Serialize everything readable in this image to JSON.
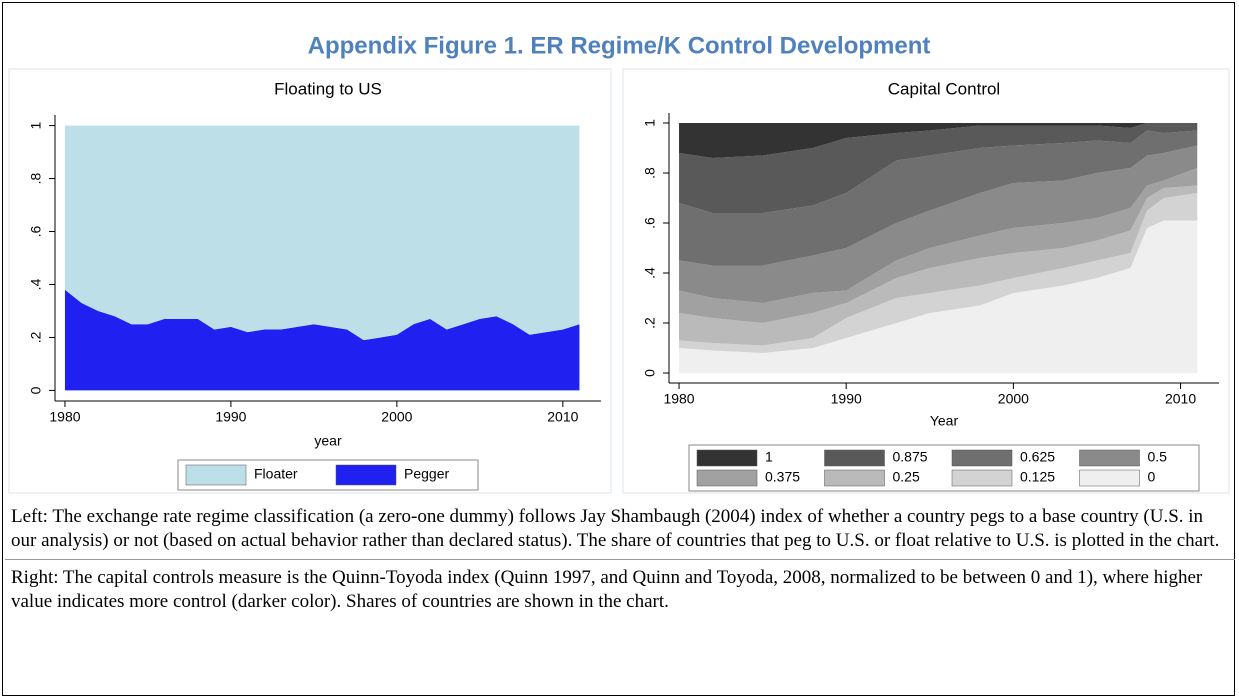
{
  "figure_title": "Appendix Figure 1. ER Regime/K Control Development",
  "notes": [
    "Left: The exchange rate regime classification (a zero-one dummy) follows Jay Shambaugh (2004) index of whether a country pegs to a base country (U.S. in our analysis) or not (based on actual behavior rather than declared status). The share of countries that peg to U.S. or float relative to U.S. is plotted in the chart.",
    "Right: The capital controls measure is the Quinn-Toyoda index (Quinn 1997, and Quinn and Toyoda, 2008, normalized to be between 0 and 1), where higher value indicates more control (darker color). Shares of countries are shown in the chart."
  ],
  "chart_data": [
    {
      "type": "stacked_area",
      "title": "Floating to US",
      "x_label": "year",
      "x": [
        1980,
        1981,
        1982,
        1983,
        1984,
        1985,
        1986,
        1987,
        1988,
        1989,
        1990,
        1991,
        1992,
        1993,
        1994,
        1995,
        1996,
        1997,
        1998,
        1999,
        2000,
        2001,
        2002,
        2003,
        2004,
        2005,
        2006,
        2007,
        2008,
        2009,
        2010,
        2011
      ],
      "series": [
        {
          "name": "Floater",
          "color": "#bde0e8",
          "values": [
            0.62,
            0.67,
            0.7,
            0.72,
            0.75,
            0.75,
            0.73,
            0.73,
            0.73,
            0.77,
            0.76,
            0.78,
            0.77,
            0.77,
            0.76,
            0.75,
            0.76,
            0.77,
            0.81,
            0.8,
            0.79,
            0.75,
            0.73,
            0.77,
            0.75,
            0.73,
            0.72,
            0.75,
            0.79,
            0.78,
            0.77,
            0.75
          ]
        },
        {
          "name": "Pegger",
          "color": "#2020f0",
          "values": [
            0.38,
            0.33,
            0.3,
            0.28,
            0.25,
            0.25,
            0.27,
            0.27,
            0.27,
            0.23,
            0.24,
            0.22,
            0.23,
            0.23,
            0.24,
            0.25,
            0.24,
            0.23,
            0.19,
            0.2,
            0.21,
            0.25,
            0.27,
            0.23,
            0.25,
            0.27,
            0.28,
            0.25,
            0.21,
            0.22,
            0.23,
            0.25
          ]
        }
      ],
      "xlim": [
        1979.4,
        2012.3
      ],
      "ylim": [
        -0.04,
        1.04
      ],
      "xticks": [
        1980,
        1990,
        2000,
        2010
      ],
      "yticks": [
        0,
        {
          "value": 0.2,
          "label": ".2"
        },
        {
          "value": 0.4,
          "label": ".4"
        },
        {
          "value": 0.6,
          "label": ".6"
        },
        {
          "value": 0.8,
          "label": ".8"
        },
        1
      ],
      "legend_columns": 2
    },
    {
      "type": "stacked_area",
      "title": "Capital Control",
      "x_label": "Year",
      "x": [
        1980,
        1982,
        1985,
        1988,
        1990,
        1993,
        1995,
        1998,
        2000,
        2003,
        2005,
        2007,
        2008,
        2009,
        2011
      ],
      "series": [
        {
          "name": "1",
          "color": "#333333",
          "values": [
            0.12,
            0.14,
            0.13,
            0.1,
            0.06,
            0.04,
            0.03,
            0.01,
            0.01,
            0.01,
            0.01,
            0.02,
            0,
            0,
            0
          ]
        },
        {
          "name": "0.875",
          "color": "#595959",
          "values": [
            0.2,
            0.22,
            0.23,
            0.23,
            0.22,
            0.11,
            0.1,
            0.09,
            0.08,
            0.07,
            0.06,
            0.06,
            0.03,
            0.04,
            0.03
          ]
        },
        {
          "name": "0.625",
          "color": "#6f6f6f",
          "values": [
            0.23,
            0.21,
            0.21,
            0.2,
            0.22,
            0.25,
            0.22,
            0.18,
            0.15,
            0.15,
            0.13,
            0.1,
            0.1,
            0.08,
            0.06
          ]
        },
        {
          "name": "0.5",
          "color": "#8a8a8a",
          "values": [
            0.12,
            0.13,
            0.15,
            0.15,
            0.17,
            0.15,
            0.15,
            0.17,
            0.18,
            0.17,
            0.18,
            0.16,
            0.12,
            0.11,
            0.09
          ]
        },
        {
          "name": "0.375",
          "color": "#a1a1a1",
          "values": [
            0.09,
            0.08,
            0.08,
            0.08,
            0.05,
            0.07,
            0.08,
            0.09,
            0.1,
            0.1,
            0.09,
            0.09,
            0.05,
            0.03,
            0.07
          ]
        },
        {
          "name": "0.25",
          "color": "#bababa",
          "values": [
            0.11,
            0.1,
            0.09,
            0.1,
            0.06,
            0.08,
            0.1,
            0.11,
            0.1,
            0.08,
            0.08,
            0.09,
            0.05,
            0.04,
            0.03
          ]
        },
        {
          "name": "0.125",
          "color": "#d3d3d3",
          "values": [
            0.03,
            0.03,
            0.03,
            0.04,
            0.08,
            0.1,
            0.08,
            0.08,
            0.06,
            0.07,
            0.07,
            0.06,
            0.07,
            0.09,
            0.11
          ]
        },
        {
          "name": "0",
          "color": "#efefef",
          "values": [
            0.1,
            0.09,
            0.08,
            0.1,
            0.14,
            0.2,
            0.24,
            0.27,
            0.32,
            0.35,
            0.38,
            0.42,
            0.58,
            0.61,
            0.61
          ]
        }
      ],
      "xlim": [
        1979.4,
        2012.3
      ],
      "ylim": [
        -0.04,
        1.04
      ],
      "xticks": [
        1980,
        1990,
        2000,
        2010
      ],
      "yticks": [
        0,
        {
          "value": 0.2,
          "label": ".2"
        },
        {
          "value": 0.4,
          "label": ".4"
        },
        {
          "value": 0.6,
          "label": ".6"
        },
        {
          "value": 0.8,
          "label": ".8"
        },
        1
      ],
      "legend_columns": 4
    }
  ]
}
